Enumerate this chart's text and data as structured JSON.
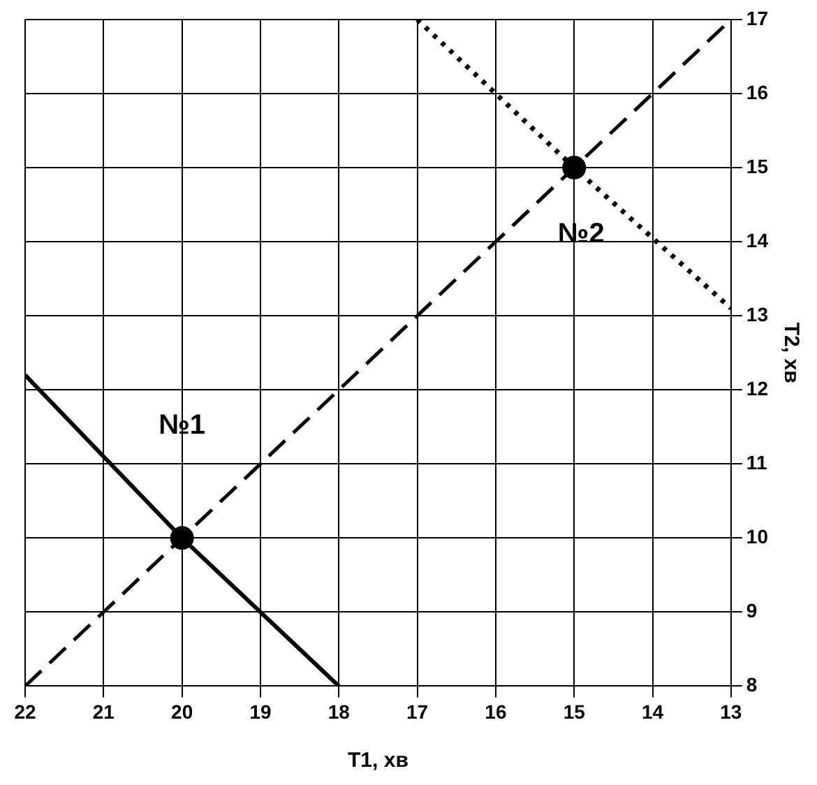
{
  "chart_data": {
    "type": "line",
    "xlabel": "T1, хв",
    "ylabel": "T2, хв",
    "xlim": [
      22,
      13
    ],
    "ylim": [
      8,
      17
    ],
    "xticks": [
      22,
      21,
      20,
      19,
      18,
      17,
      16,
      15,
      14,
      13
    ],
    "yticks": [
      8,
      9,
      10,
      11,
      12,
      13,
      14,
      15,
      16,
      17
    ],
    "grid": true,
    "legend": false,
    "marker": "none",
    "series": [
      {
        "color": "#000000",
        "line_style": "dashed",
        "x": [
          22,
          13
        ],
        "values": [
          8,
          17
        ]
      },
      {
        "color": "#000000",
        "line_style": "solid",
        "x": [
          22,
          20,
          18
        ],
        "values": [
          12.2,
          10,
          8
        ]
      },
      {
        "color": "#000000",
        "line_style": "dotted",
        "x": [
          17,
          15,
          13
        ],
        "values": [
          17,
          15,
          13.1
        ]
      },
      {
        "type": "scatter",
        "color": "#000000",
        "marker": "circle",
        "x": [
          20,
          15
        ],
        "values": [
          10,
          15
        ]
      }
    ],
    "annotations": [
      "№1",
      "№2"
    ]
  }
}
